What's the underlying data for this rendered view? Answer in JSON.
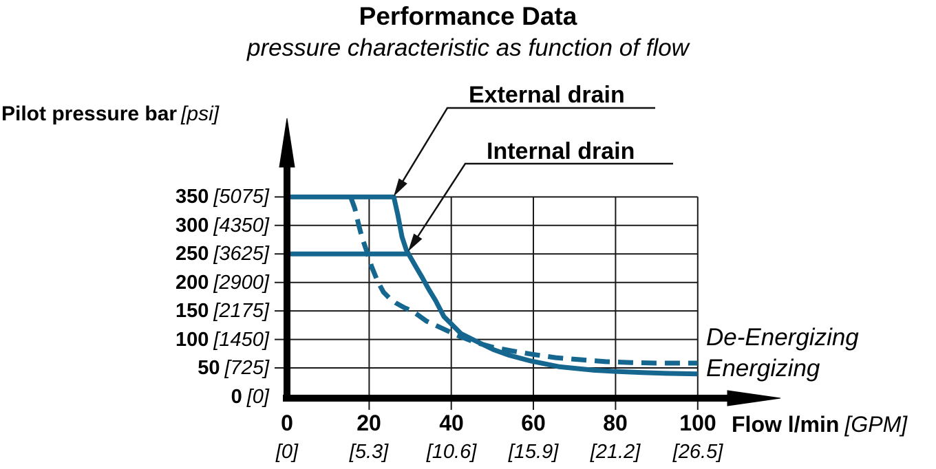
{
  "title": "Performance Data",
  "subtitle": "pressure characteristic as function of flow",
  "y_axis": {
    "title": "Pilot pressure bar",
    "title_unit": "[psi]"
  },
  "x_axis": {
    "title": "Flow l/min",
    "title_unit": "[GPM]"
  },
  "curve_labels": {
    "external": "External drain",
    "internal": "Internal drain"
  },
  "mode_labels": {
    "dashed": "De-Energizing",
    "solid": "Energizing"
  },
  "colors": {
    "curve": "#15678F",
    "axis": "#000000",
    "grid": "#1a1a1a",
    "text": "#000000"
  },
  "chart_data": {
    "type": "line",
    "title": "Performance Data",
    "subtitle": "pressure characteristic as function of flow",
    "xlabel": "Flow l/min [GPM]",
    "ylabel": "Pilot pressure bar [psi]",
    "xlim": [
      0,
      100
    ],
    "ylim": [
      0,
      350
    ],
    "grid": true,
    "legend_position": "leader-annotations",
    "x_ticks": [
      {
        "v": 0,
        "label": "0",
        "sub": "[0]"
      },
      {
        "v": 20,
        "label": "20",
        "sub": "[5.3]"
      },
      {
        "v": 40,
        "label": "40",
        "sub": "[10.6]"
      },
      {
        "v": 60,
        "label": "60",
        "sub": "[15.9]"
      },
      {
        "v": 80,
        "label": "80",
        "sub": "[21.2]"
      },
      {
        "v": 100,
        "label": "100",
        "sub": "[26.5]"
      }
    ],
    "y_ticks": [
      {
        "v": 350,
        "label": "350",
        "sub": "[5075]"
      },
      {
        "v": 300,
        "label": "300",
        "sub": "[4350]"
      },
      {
        "v": 250,
        "label": "250",
        "sub": "[3625]"
      },
      {
        "v": 200,
        "label": "200",
        "sub": "[2900]"
      },
      {
        "v": 150,
        "label": "150",
        "sub": "[2175]"
      },
      {
        "v": 100,
        "label": "100",
        "sub": "[1450]"
      },
      {
        "v": 50,
        "label": "50",
        "sub": "[725]"
      },
      {
        "v": 0,
        "label": "0",
        "sub": "[0]"
      }
    ],
    "series": [
      {
        "name": "External drain (Energizing)",
        "line": "solid",
        "points": [
          [
            0,
            350
          ],
          [
            26,
            350
          ],
          [
            27,
            318
          ],
          [
            28,
            280
          ],
          [
            29,
            258
          ],
          [
            29.6,
            250
          ],
          [
            31.5,
            226
          ],
          [
            32.9,
            209
          ],
          [
            34.5,
            188
          ],
          [
            36.2,
            168
          ],
          [
            38.2,
            140
          ],
          [
            39.9,
            128
          ],
          [
            42.4,
            110
          ],
          [
            46.3,
            96
          ],
          [
            50.3,
            82
          ],
          [
            54.2,
            72
          ],
          [
            59.5,
            62
          ],
          [
            66.4,
            52
          ],
          [
            74.8,
            46
          ],
          [
            79.6,
            44
          ],
          [
            86.5,
            42
          ],
          [
            92.2,
            40.5
          ],
          [
            100,
            39.5
          ]
        ]
      },
      {
        "name": "Internal drain",
        "line": "solid",
        "points": [
          [
            0,
            250
          ],
          [
            29.5,
            250
          ]
        ]
      },
      {
        "name": "De-Energizing",
        "line": "dashed",
        "points": [
          [
            15.5,
            350
          ],
          [
            16.5,
            330
          ],
          [
            17.5,
            300
          ],
          [
            18.3,
            278
          ],
          [
            19.4,
            255
          ],
          [
            20.6,
            228
          ],
          [
            22,
            203
          ],
          [
            23.5,
            183
          ],
          [
            25,
            172
          ],
          [
            26.5,
            164
          ],
          [
            28.5,
            156
          ],
          [
            30.7,
            149
          ],
          [
            34,
            132
          ],
          [
            37.9,
            119
          ],
          [
            41.2,
            108
          ],
          [
            45.8,
            95
          ],
          [
            50.3,
            86
          ],
          [
            54.7,
            80
          ],
          [
            59.7,
            74
          ],
          [
            65.4,
            68
          ],
          [
            71.4,
            64.5
          ],
          [
            77.6,
            61
          ],
          [
            83.8,
            59.5
          ],
          [
            89.9,
            58.5
          ],
          [
            100,
            58.5
          ]
        ]
      }
    ]
  }
}
